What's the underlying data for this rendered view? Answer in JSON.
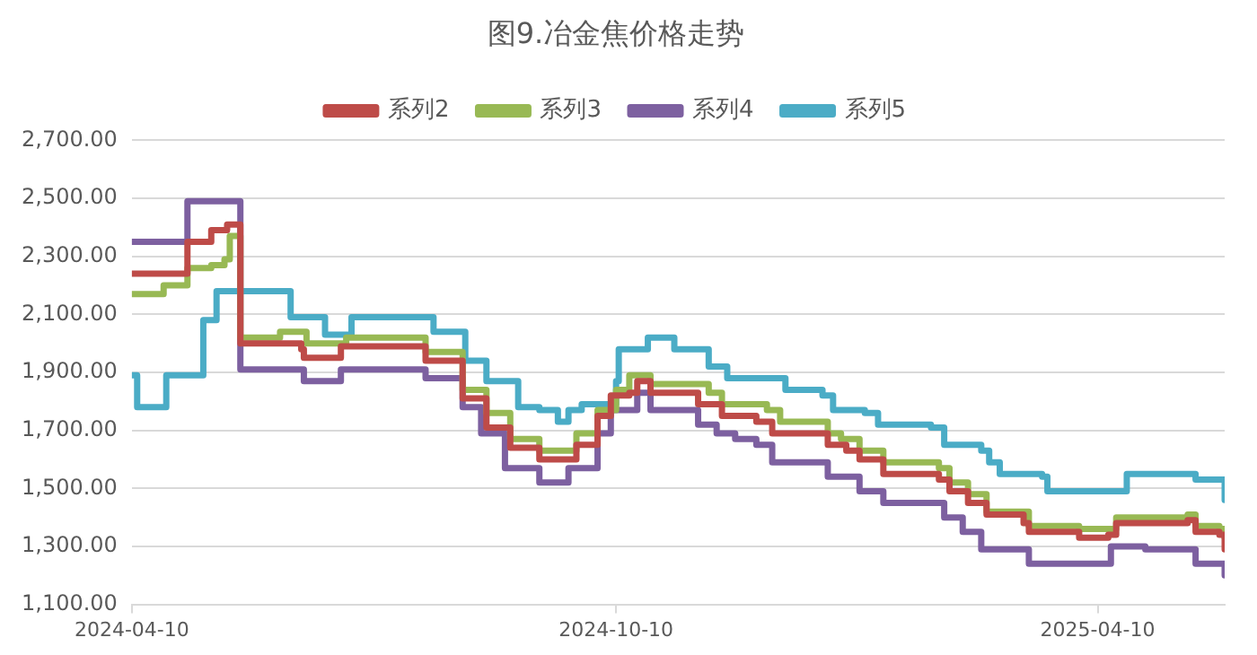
{
  "chart_data": {
    "type": "step",
    "title": "图9.冶金焦价格走势",
    "legend": "top",
    "grid": "y",
    "line_style": "solid",
    "marker": "none",
    "xlim": [
      "2024-04-10",
      "2025-05-28"
    ],
    "xticks": [
      "2024-04-10",
      "2024-10-10",
      "2025-04-10"
    ],
    "ylim": [
      1100,
      2700
    ],
    "yticks": [
      {
        "value": 1100,
        "label": "1,100.00"
      },
      {
        "value": 1300,
        "label": "1,300.00"
      },
      {
        "value": 1500,
        "label": "1,500.00"
      },
      {
        "value": 1700,
        "label": "1,700.00"
      },
      {
        "value": 1900,
        "label": "1,900.00"
      },
      {
        "value": 2100,
        "label": "2,100.00"
      },
      {
        "value": 2300,
        "label": "2,300.00"
      },
      {
        "value": 2500,
        "label": "2,500.00"
      },
      {
        "value": 2700,
        "label": "2,700.00"
      }
    ],
    "series": [
      {
        "name": "系列2",
        "color": "#be4b48",
        "x": [
          "2024-04-10",
          "2024-04-17",
          "2024-05-01",
          "2024-05-10",
          "2024-05-16",
          "2024-05-19",
          "2024-05-21",
          "2024-06-09",
          "2024-06-13",
          "2024-06-14",
          "2024-06-24",
          "2024-06-28",
          "2024-07-21",
          "2024-07-30",
          "2024-08-13",
          "2024-08-22",
          "2024-08-31",
          "2024-09-11",
          "2024-09-18",
          "2024-09-25",
          "2024-10-03",
          "2024-10-08",
          "2024-10-15",
          "2024-10-18",
          "2024-10-21",
          "2024-10-23",
          "2024-11-05",
          "2024-11-10",
          "2024-11-19",
          "2024-12-02",
          "2024-12-08",
          "2024-12-27",
          "2024-12-29",
          "2025-01-05",
          "2025-01-10",
          "2025-01-19",
          "2025-02-09",
          "2025-02-13",
          "2025-02-20",
          "2025-02-27",
          "2025-03-13",
          "2025-03-15",
          "2025-04-03",
          "2025-04-14",
          "2025-04-17",
          "2025-05-14",
          "2025-05-17",
          "2025-05-26",
          "2025-05-28"
        ],
        "values": [
          2240,
          2240,
          2350,
          2390,
          2410,
          2410,
          2000,
          2000,
          1980,
          1950,
          1950,
          1990,
          1990,
          1940,
          1810,
          1710,
          1640,
          1600,
          1600,
          1650,
          1750,
          1820,
          1830,
          1870,
          1870,
          1830,
          1830,
          1790,
          1750,
          1730,
          1690,
          1690,
          1650,
          1630,
          1600,
          1550,
          1530,
          1490,
          1450,
          1410,
          1380,
          1350,
          1330,
          1340,
          1380,
          1390,
          1350,
          1340,
          1290
        ]
      },
      {
        "name": "系列3",
        "color": "#98b954",
        "x": [
          "2024-04-10",
          "2024-04-17",
          "2024-04-22",
          "2024-05-01",
          "2024-05-10",
          "2024-05-15",
          "2024-05-17",
          "2024-05-21",
          "2024-05-31",
          "2024-06-05",
          "2024-06-13",
          "2024-06-15",
          "2024-06-28",
          "2024-06-30",
          "2024-07-21",
          "2024-07-30",
          "2024-08-13",
          "2024-08-22",
          "2024-08-31",
          "2024-09-11",
          "2024-09-18",
          "2024-09-25",
          "2024-10-03",
          "2024-10-10",
          "2024-10-15",
          "2024-10-22",
          "2024-10-23",
          "2024-11-08",
          "2024-11-14",
          "2024-11-19",
          "2024-12-06",
          "2024-12-11",
          "2024-12-27",
          "2024-12-29",
          "2025-01-03",
          "2025-01-10",
          "2025-01-19",
          "2025-02-09",
          "2025-02-13",
          "2025-02-20",
          "2025-02-27",
          "2025-03-13",
          "2025-03-15",
          "2025-04-03",
          "2025-04-14",
          "2025-04-17",
          "2025-05-14",
          "2025-05-17",
          "2025-05-26",
          "2025-05-28"
        ],
        "values": [
          2170,
          2170,
          2200,
          2260,
          2270,
          2290,
          2370,
          2020,
          2020,
          2040,
          2040,
          2000,
          2000,
          2020,
          2020,
          1970,
          1840,
          1760,
          1670,
          1630,
          1630,
          1690,
          1770,
          1840,
          1890,
          1890,
          1860,
          1860,
          1830,
          1790,
          1770,
          1730,
          1730,
          1690,
          1670,
          1630,
          1590,
          1570,
          1520,
          1480,
          1420,
          1420,
          1370,
          1360,
          1360,
          1400,
          1410,
          1370,
          1360,
          1330
        ]
      },
      {
        "name": "系列4",
        "color": "#7d60a0",
        "x": [
          "2024-04-10",
          "2024-04-16",
          "2024-05-01",
          "2024-05-17",
          "2024-05-21",
          "2024-06-13",
          "2024-06-14",
          "2024-06-25",
          "2024-06-28",
          "2024-07-21",
          "2024-07-30",
          "2024-08-13",
          "2024-08-20",
          "2024-08-29",
          "2024-09-11",
          "2024-09-18",
          "2024-09-22",
          "2024-10-03",
          "2024-10-08",
          "2024-10-15",
          "2024-10-18",
          "2024-10-22",
          "2024-10-23",
          "2024-11-05",
          "2024-11-10",
          "2024-11-17",
          "2024-11-24",
          "2024-12-02",
          "2024-12-08",
          "2024-12-27",
          "2024-12-29",
          "2025-01-03",
          "2025-01-10",
          "2025-01-19",
          "2025-02-06",
          "2025-02-11",
          "2025-02-18",
          "2025-02-25",
          "2025-03-13",
          "2025-03-15",
          "2025-04-14",
          "2025-04-15",
          "2025-04-28",
          "2025-05-14",
          "2025-05-17",
          "2025-05-27",
          "2025-05-28"
        ],
        "values": [
          2350,
          2350,
          2490,
          2490,
          1910,
          1910,
          1870,
          1870,
          1910,
          1910,
          1880,
          1780,
          1690,
          1570,
          1520,
          1520,
          1570,
          1690,
          1770,
          1770,
          1830,
          1830,
          1770,
          1770,
          1720,
          1690,
          1670,
          1650,
          1590,
          1590,
          1540,
          1540,
          1490,
          1450,
          1450,
          1400,
          1350,
          1290,
          1290,
          1240,
          1240,
          1300,
          1290,
          1290,
          1240,
          1240,
          1200
        ]
      },
      {
        "name": "系列5",
        "color": "#4bacc6",
        "x": [
          "2024-04-10",
          "2024-04-12",
          "2024-04-19",
          "2024-04-23",
          "2024-04-30",
          "2024-05-07",
          "2024-05-10",
          "2024-05-12",
          "2024-05-31",
          "2024-06-09",
          "2024-06-21",
          "2024-06-22",
          "2024-06-28",
          "2024-07-02",
          "2024-07-31",
          "2024-08-02",
          "2024-08-09",
          "2024-08-14",
          "2024-08-20",
          "2024-08-22",
          "2024-08-31",
          "2024-09-03",
          "2024-09-11",
          "2024-09-18",
          "2024-09-22",
          "2024-09-27",
          "2024-10-10",
          "2024-10-11",
          "2024-10-16",
          "2024-10-22",
          "2024-10-30",
          "2024-11-01",
          "2024-11-10",
          "2024-11-14",
          "2024-11-21",
          "2024-12-08",
          "2024-12-13",
          "2024-12-27",
          "2024-12-31",
          "2025-01-12",
          "2025-01-17",
          "2025-02-06",
          "2025-02-11",
          "2025-02-25",
          "2025-02-28",
          "2025-03-04",
          "2025-03-20",
          "2025-03-22",
          "2025-04-14",
          "2025-04-21",
          "2025-05-14",
          "2025-05-17",
          "2025-05-26",
          "2025-05-28"
        ],
        "values": [
          1890,
          1780,
          1780,
          1890,
          1890,
          2080,
          2080,
          2180,
          2180,
          2090,
          2090,
          2030,
          2030,
          2090,
          2090,
          2040,
          2040,
          1940,
          1940,
          1870,
          1870,
          1780,
          1770,
          1730,
          1770,
          1790,
          1870,
          1980,
          1980,
          2020,
          2020,
          1980,
          1980,
          1920,
          1880,
          1880,
          1840,
          1820,
          1770,
          1760,
          1720,
          1710,
          1650,
          1630,
          1590,
          1550,
          1540,
          1490,
          1490,
          1550,
          1550,
          1530,
          1530,
          1460
        ]
      }
    ]
  }
}
